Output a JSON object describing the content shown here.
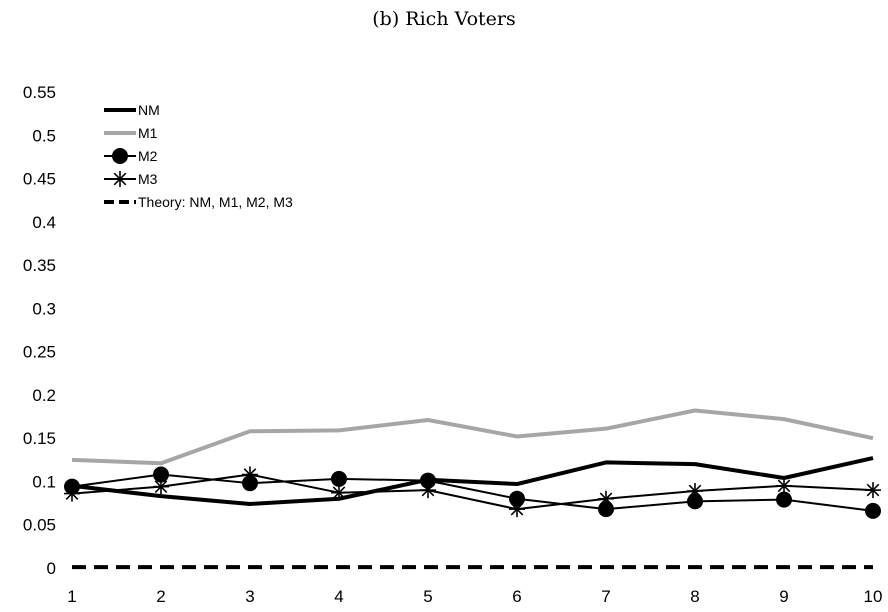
{
  "chart_data": {
    "type": "line",
    "title": "(b) Rich Voters",
    "xlabel": "",
    "ylabel": "",
    "x": [
      1,
      2,
      3,
      4,
      5,
      6,
      7,
      8,
      9,
      10
    ],
    "xlim": [
      1,
      10
    ],
    "ylim": [
      0,
      0.55
    ],
    "yticks": [
      "0",
      "0.05",
      "0.1",
      "0.15",
      "0.2",
      "0.25",
      "0.3",
      "0.35",
      "0.4",
      "0.45",
      "0.5",
      "0.55"
    ],
    "xticks": [
      "1",
      "2",
      "3",
      "4",
      "5",
      "6",
      "7",
      "8",
      "9",
      "10"
    ],
    "grid": false,
    "legend_position": "top-left",
    "series": [
      {
        "name": "NM",
        "color": "#000000",
        "style": "thick",
        "marker": "none",
        "values": [
          0.095,
          0.083,
          0.074,
          0.08,
          0.102,
          0.097,
          0.122,
          0.12,
          0.104,
          0.127
        ]
      },
      {
        "name": "M1",
        "color": "#a6a6a6",
        "style": "thick",
        "marker": "none",
        "values": [
          0.125,
          0.121,
          0.158,
          0.159,
          0.171,
          0.152,
          0.161,
          0.182,
          0.172,
          0.15
        ]
      },
      {
        "name": "M2",
        "color": "#000000",
        "style": "thin",
        "marker": "circle",
        "values": [
          0.094,
          0.108,
          0.098,
          0.103,
          0.101,
          0.08,
          0.068,
          0.077,
          0.079,
          0.066
        ]
      },
      {
        "name": "M3",
        "color": "#000000",
        "style": "thin",
        "marker": "star",
        "values": [
          0.086,
          0.094,
          0.108,
          0.087,
          0.09,
          0.068,
          0.08,
          0.089,
          0.095,
          0.09
        ]
      },
      {
        "name": "Theory: NM, M1, M2, M3",
        "color": "#000000",
        "style": "dashed",
        "marker": "none",
        "values": [
          0.001,
          0.001,
          0.001,
          0.001,
          0.001,
          0.001,
          0.001,
          0.001,
          0.001,
          0.001
        ]
      }
    ]
  }
}
